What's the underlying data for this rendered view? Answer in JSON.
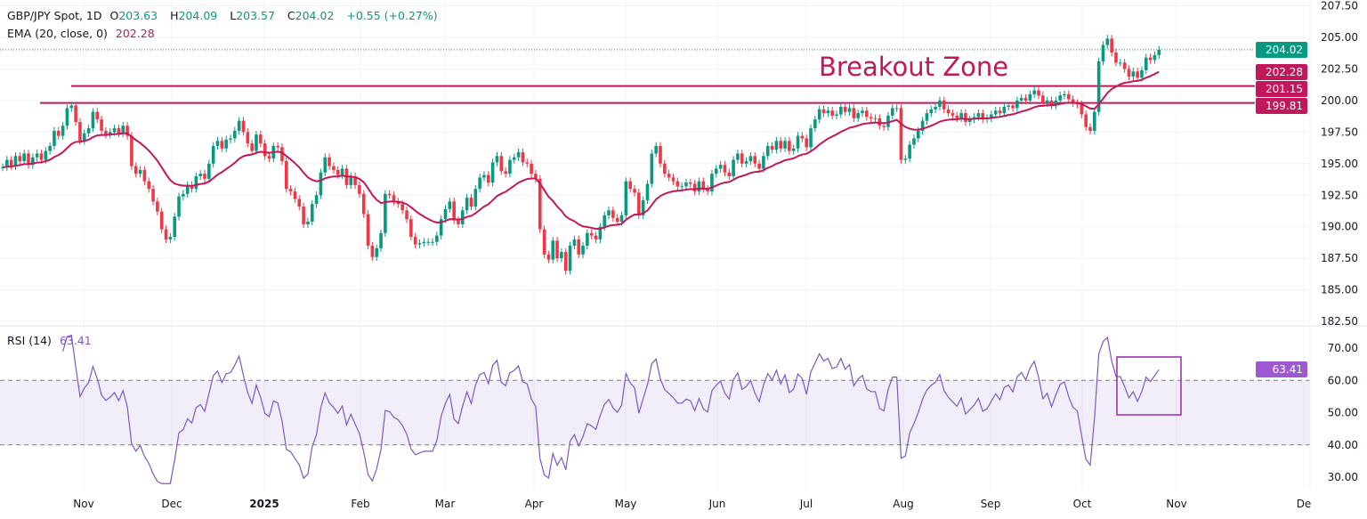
{
  "header": {
    "symbol": "GBP/JPY Spot, 1D",
    "open_label": "O",
    "open": "203.63",
    "high_label": "H",
    "high": "204.09",
    "low_label": "L",
    "low": "203.57",
    "close_label": "C",
    "close": "204.02",
    "change": "+0.55 (+0.27%)"
  },
  "ema_legend": {
    "label": "EMA (20, close, 0)",
    "value": "202.28"
  },
  "rsi_legend": {
    "label": "RSI (14)",
    "value": "63.41"
  },
  "annotation": {
    "text": "Breakout Zone"
  },
  "colors": {
    "up": "#089981",
    "down": "#f23645",
    "ema": "#c2185b",
    "level": "#c2185b",
    "rsi": "#7e57c2",
    "rsi_band": "#7e57c2",
    "last_price": "#089981"
  },
  "chart_data": [
    {
      "type": "candlestick",
      "title": "GBP/JPY Spot, 1D",
      "x_start": "2024-10-04",
      "interval": "1D (weekdays)",
      "y_ticks": [
        "182.50",
        "185.00",
        "187.50",
        "190.00",
        "192.50",
        "195.00",
        "197.50",
        "200.00",
        "202.50",
        "205.00",
        "207.50"
      ],
      "ylim": [
        182.5,
        207.5
      ],
      "x_ticks": [
        "Nov",
        "Dec",
        "2025",
        "Feb",
        "Mar",
        "Apr",
        "May",
        "Jun",
        "Jul",
        "Aug",
        "Sep",
        "Oct",
        "Nov",
        "De"
      ],
      "grid": true,
      "closes": [
        194.7,
        195.3,
        194.8,
        195.6,
        195.2,
        195.8,
        194.9,
        195.5,
        195.8,
        195.3,
        196.0,
        196.4,
        197.6,
        197.2,
        198.0,
        199.4,
        199.6,
        198.3,
        196.8,
        197.4,
        197.8,
        199.1,
        198.5,
        197.6,
        197.3,
        197.5,
        197.8,
        197.4,
        198.0,
        197.2,
        194.8,
        194.2,
        194.5,
        193.6,
        193.0,
        192.0,
        191.2,
        189.8,
        189.0,
        189.2,
        190.8,
        192.4,
        192.6,
        193.3,
        193.0,
        194.0,
        194.2,
        193.8,
        195.0,
        196.4,
        196.8,
        196.2,
        196.9,
        197.0,
        197.6,
        198.4,
        197.5,
        196.6,
        196.0,
        197.3,
        196.6,
        195.6,
        195.4,
        196.4,
        196.3,
        195.2,
        193.0,
        192.8,
        192.2,
        191.6,
        190.2,
        190.4,
        191.8,
        192.5,
        194.3,
        195.5,
        194.8,
        194.5,
        194.1,
        194.6,
        193.3,
        194.0,
        193.3,
        192.6,
        191.0,
        188.5,
        187.6,
        188.3,
        189.5,
        192.6,
        192.5,
        192.0,
        191.8,
        191.3,
        190.6,
        189.2,
        188.6,
        188.7,
        188.8,
        188.8,
        188.8,
        189.3,
        190.6,
        191.4,
        192.0,
        190.5,
        190.2,
        191.3,
        192.3,
        191.6,
        193.0,
        193.9,
        194.1,
        193.5,
        195.1,
        195.6,
        194.4,
        194.2,
        195.3,
        195.5,
        195.9,
        195.1,
        195.0,
        194.2,
        193.8,
        189.8,
        187.8,
        187.4,
        188.9,
        187.5,
        188.0,
        186.5,
        188.5,
        189.0,
        187.8,
        188.5,
        189.5,
        189.3,
        189.0,
        190.0,
        190.9,
        191.3,
        190.7,
        190.4,
        190.9,
        193.6,
        193.0,
        192.7,
        190.9,
        192.1,
        193.4,
        195.8,
        196.4,
        195.0,
        194.2,
        193.9,
        193.6,
        193.2,
        193.2,
        193.5,
        193.4,
        192.8,
        193.6,
        193.0,
        192.8,
        194.2,
        194.6,
        194.9,
        194.3,
        194.0,
        195.3,
        195.8,
        195.0,
        195.2,
        195.6,
        195.0,
        194.6,
        195.6,
        196.4,
        196.1,
        196.8,
        196.2,
        196.8,
        196.0,
        196.2,
        197.2,
        197.0,
        196.3,
        197.8,
        198.5,
        199.3,
        199.0,
        199.2,
        198.8,
        198.9,
        199.5,
        199.1,
        199.4,
        198.6,
        199.0,
        199.2,
        198.7,
        198.6,
        198.6,
        198.0,
        197.9,
        198.8,
        199.4,
        199.4,
        195.3,
        195.4,
        196.5,
        197.0,
        197.6,
        198.4,
        199.0,
        199.3,
        199.5,
        200.0,
        199.3,
        199.0,
        198.8,
        198.6,
        199.0,
        198.3,
        198.5,
        198.7,
        199.0,
        198.5,
        198.6,
        198.9,
        199.2,
        199.0,
        199.5,
        199.6,
        199.4,
        200.0,
        200.2,
        200.0,
        200.5,
        200.8,
        200.4,
        199.8,
        200.0,
        199.6,
        200.0,
        200.4,
        200.5,
        200.1,
        199.8,
        199.7,
        198.9,
        197.9,
        197.6,
        199.1,
        203.1,
        204.4,
        204.9,
        203.8,
        203.0,
        203.0,
        202.5,
        201.9,
        202.3,
        201.8,
        202.4,
        203.4,
        203.2,
        203.6,
        204.02
      ],
      "ema_period": 20,
      "levels": [
        {
          "label": "201.15",
          "value": 201.15
        },
        {
          "label": "199.81",
          "value": 199.81
        }
      ],
      "price_labels": [
        {
          "label": "204.02",
          "kind": "last"
        },
        {
          "label": "202.28",
          "kind": "ema"
        },
        {
          "label": "201.15",
          "kind": "level"
        },
        {
          "label": "199.81",
          "kind": "level"
        }
      ]
    },
    {
      "type": "line",
      "title": "RSI (14)",
      "period": 14,
      "ylim": [
        30,
        70
      ],
      "y_ticks": [
        "30.00",
        "40.00",
        "50.00",
        "60.00",
        "70.00"
      ],
      "band": [
        40,
        60
      ],
      "last_label": "63.41"
    }
  ]
}
